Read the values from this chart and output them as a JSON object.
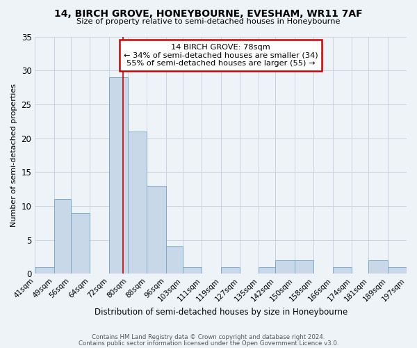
{
  "title": "14, BIRCH GROVE, HONEYBOURNE, EVESHAM, WR11 7AF",
  "subtitle": "Size of property relative to semi-detached houses in Honeybourne",
  "xlabel": "Distribution of semi-detached houses by size in Honeybourne",
  "ylabel": "Number of semi-detached properties",
  "bin_labels": [
    "41sqm",
    "49sqm",
    "56sqm",
    "64sqm",
    "72sqm",
    "80sqm",
    "88sqm",
    "96sqm",
    "103sqm",
    "111sqm",
    "119sqm",
    "127sqm",
    "135sqm",
    "142sqm",
    "150sqm",
    "158sqm",
    "166sqm",
    "174sqm",
    "181sqm",
    "189sqm",
    "197sqm"
  ],
  "bin_edges": [
    41,
    49,
    56,
    64,
    72,
    80,
    88,
    96,
    103,
    111,
    119,
    127,
    135,
    142,
    150,
    158,
    166,
    174,
    181,
    189,
    197
  ],
  "counts": [
    1,
    11,
    9,
    0,
    29,
    21,
    13,
    4,
    1,
    0,
    1,
    0,
    1,
    2,
    2,
    0,
    1,
    0,
    2,
    1,
    0
  ],
  "bar_color": "#c8d8e8",
  "bar_edge_color": "#7aaac8",
  "grid_color": "#c8d4e0",
  "bg_color": "#eef3f8",
  "property_value": 78,
  "marker_line_color": "#cc0000",
  "annotation_box_edge_color": "#cc0000",
  "annotation_title": "14 BIRCH GROVE: 78sqm",
  "annotation_line1": "← 34% of semi-detached houses are smaller (34)",
  "annotation_line2": "55% of semi-detached houses are larger (55) →",
  "ylim": [
    0,
    35
  ],
  "yticks": [
    0,
    5,
    10,
    15,
    20,
    25,
    30,
    35
  ],
  "footer1": "Contains HM Land Registry data © Crown copyright and database right 2024.",
  "footer2": "Contains public sector information licensed under the Open Government Licence v3.0."
}
